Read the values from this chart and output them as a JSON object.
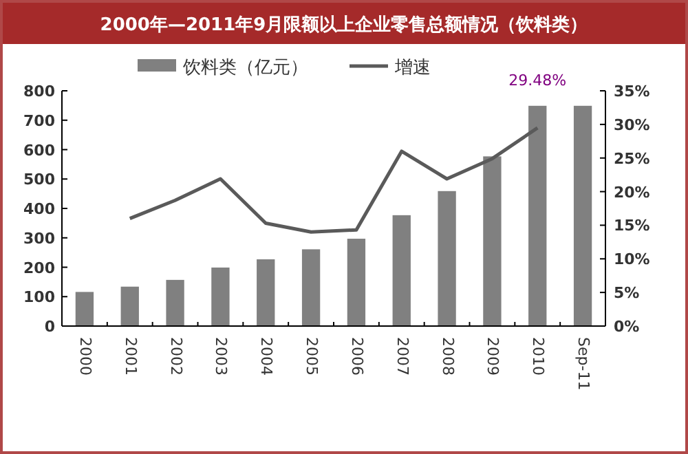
{
  "chart_data": {
    "type": "bar",
    "title": "2000年—2011年9月限额以上企业零售总额情况（饮料类）",
    "categories": [
      "2000",
      "2001",
      "2002",
      "2003",
      "2004",
      "2005",
      "2006",
      "2007",
      "2008",
      "2009",
      "2010",
      "Sep-11"
    ],
    "series": [
      {
        "name": "饮料类（亿元）",
        "color": "#808080",
        "values": [
          116,
          134,
          157,
          199,
          227,
          261,
          297,
          377,
          459,
          577,
          749,
          749
        ]
      },
      {
        "name": "增速",
        "type": "line",
        "axis": "y2",
        "color": "#5a5a5a",
        "values": [
          null,
          16.0,
          18.7,
          21.9,
          15.3,
          14.0,
          14.3,
          26.0,
          21.9,
          24.9,
          29.48,
          null
        ]
      }
    ],
    "ylim": [
      0,
      800
    ],
    "yticks": [
      0,
      100,
      200,
      300,
      400,
      500,
      600,
      700,
      800
    ],
    "y2lim": [
      0,
      35
    ],
    "y2ticks": [
      {
        "value": 0,
        "label": "0%"
      },
      {
        "value": 5,
        "label": "5%"
      },
      {
        "value": 10,
        "label": "10%"
      },
      {
        "value": 15,
        "label": "15%"
      },
      {
        "value": 20,
        "label": "20%"
      },
      {
        "value": 25,
        "label": "25%"
      },
      {
        "value": 30,
        "label": "30%"
      },
      {
        "value": 35,
        "label": "35%"
      }
    ],
    "annotations": [
      "29.48%"
    ],
    "legend": "top",
    "grid": false,
    "marker": "none"
  }
}
